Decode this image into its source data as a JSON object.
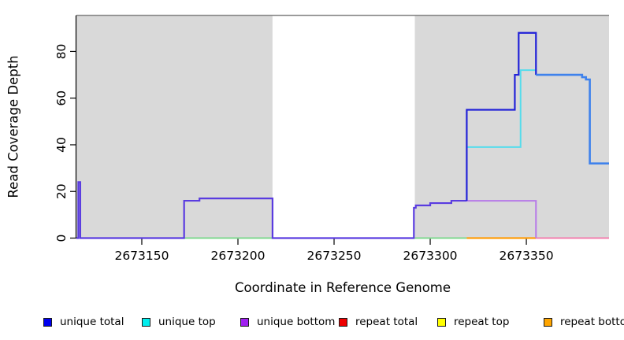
{
  "chart_data": {
    "type": "line",
    "subtype": "step-coverage",
    "title": "",
    "xlabel": "Coordinate in Reference Genome",
    "ylabel": "Read Coverage Depth",
    "xlim": [
      2673116,
      2673393
    ],
    "ylim": [
      0,
      95.5
    ],
    "x_ticks": [
      2673150,
      2673200,
      2673250,
      2673300,
      2673350
    ],
    "y_ticks": [
      0,
      20,
      40,
      60,
      80
    ],
    "grid": "off",
    "legend_position": "bottom",
    "shaded_regions": [
      {
        "name": "left-gray-region",
        "x0": 2673116,
        "x1": 2673218,
        "fill": "#d9d9d9"
      },
      {
        "name": "white-region",
        "x0": 2673218,
        "x1": 2673292,
        "fill": "#ffffff"
      },
      {
        "name": "right-gray-region",
        "x0": 2673292,
        "x1": 2673393,
        "fill": "#d9d9d9"
      }
    ],
    "series": [
      {
        "name": "unique total",
        "color": "#0000ee",
        "points": [
          [
            2673116,
            0
          ],
          [
            2673117,
            24
          ],
          [
            2673118,
            0
          ],
          [
            2673172,
            16
          ],
          [
            2673180,
            17
          ],
          [
            2673218,
            0
          ],
          [
            2673291.5,
            13
          ],
          [
            2673292.5,
            14
          ],
          [
            2673300,
            15
          ],
          [
            2673311,
            16
          ],
          [
            2673319,
            55
          ],
          [
            2673344,
            70
          ],
          [
            2673346,
            88
          ],
          [
            2673355,
            70
          ],
          [
            2673379,
            69
          ],
          [
            2673381,
            68
          ],
          [
            2673383,
            32
          ],
          [
            2673393,
            32
          ]
        ]
      },
      {
        "name": "unique top",
        "color": "#00eeee",
        "points": [
          [
            2673116,
            0
          ],
          [
            2673319,
            39
          ],
          [
            2673347,
            72
          ],
          [
            2673355,
            70
          ],
          [
            2673379,
            69
          ],
          [
            2673381,
            68
          ],
          [
            2673383,
            32
          ],
          [
            2673393,
            32
          ]
        ]
      },
      {
        "name": "unique bottom",
        "color": "#a020f0",
        "points": [
          [
            2673116,
            0
          ],
          [
            2673117,
            24
          ],
          [
            2673118,
            0
          ],
          [
            2673172,
            16
          ],
          [
            2673180,
            17
          ],
          [
            2673218,
            0
          ],
          [
            2673291.5,
            13
          ],
          [
            2673292.5,
            14
          ],
          [
            2673300,
            15
          ],
          [
            2673311,
            16
          ],
          [
            2673355,
            0
          ],
          [
            2673393,
            0
          ]
        ]
      },
      {
        "name": "repeat total",
        "color": "#ee0000",
        "points": [
          [
            2673116,
            0
          ],
          [
            2673393,
            0
          ]
        ]
      },
      {
        "name": "repeat top",
        "color": "#ffff00",
        "points": [
          [
            2673116,
            0
          ],
          [
            2673393,
            0
          ]
        ]
      },
      {
        "name": "repeat bottom",
        "color": "#ffa500",
        "points": [
          [
            2673116,
            0
          ],
          [
            2673393,
            0
          ]
        ]
      }
    ],
    "render_segments": [
      {
        "name": "zero-line-green-left",
        "color": "#7fd78f",
        "width": 2,
        "points": [
          [
            2673172,
            0
          ],
          [
            2673218,
            0
          ]
        ]
      },
      {
        "name": "zero-line-green-right",
        "color": "#7fd78f",
        "width": 2,
        "points": [
          [
            2673292,
            0
          ],
          [
            2673319,
            0
          ]
        ]
      },
      {
        "name": "zero-line-orange",
        "color": "#ff9d0a",
        "width": 2.2,
        "points": [
          [
            2673319,
            0
          ],
          [
            2673355,
            0
          ]
        ]
      },
      {
        "name": "zero-line-pink",
        "color": "#f27fae",
        "width": 2,
        "points": [
          [
            2673355,
            0
          ],
          [
            2673393,
            0
          ]
        ]
      },
      {
        "name": "unique-bottom-line",
        "color": "#b77ae8",
        "width": 2,
        "points": [
          [
            2673319,
            16
          ],
          [
            2673355,
            0
          ]
        ]
      },
      {
        "name": "unique-top-line",
        "color": "#55dcec",
        "width": 2,
        "points": [
          [
            2673319,
            39
          ],
          [
            2673347,
            72
          ],
          [
            2673355,
            70
          ]
        ]
      },
      {
        "name": "unique-total-violet",
        "color": "#5a3ce0",
        "width": 2.2,
        "points": [
          [
            2673116,
            0
          ],
          [
            2673117,
            24
          ],
          [
            2673118,
            0
          ],
          [
            2673172,
            16
          ],
          [
            2673180,
            17
          ],
          [
            2673218,
            0
          ],
          [
            2673291.5,
            13
          ],
          [
            2673292.5,
            14
          ],
          [
            2673300,
            15
          ],
          [
            2673311,
            16
          ],
          [
            2673319,
            16
          ]
        ]
      },
      {
        "name": "unique-total-blue",
        "color": "#2222d8",
        "width": 2.2,
        "points": [
          [
            2673319,
            16
          ],
          [
            2673319,
            55
          ],
          [
            2673344,
            70
          ],
          [
            2673346,
            88
          ],
          [
            2673355,
            70
          ]
        ]
      },
      {
        "name": "unique-total-skyblue",
        "color": "#3f82ec",
        "width": 2.6,
        "points": [
          [
            2673355,
            70
          ],
          [
            2673379,
            69
          ],
          [
            2673381,
            68
          ],
          [
            2673383,
            32
          ],
          [
            2673393,
            32
          ]
        ]
      }
    ],
    "frame": {
      "top_border_color": "#8a8a8a",
      "axis_color": "#000000"
    }
  },
  "legend": {
    "items": [
      {
        "label": "unique total",
        "color": "#0000ee"
      },
      {
        "label": "unique top",
        "color": "#00eeee"
      },
      {
        "label": "unique bottom",
        "color": "#a020f0"
      },
      {
        "label": "repeat total",
        "color": "#ee0000"
      },
      {
        "label": "repeat top",
        "color": "#ffff00"
      },
      {
        "label": "repeat bottom",
        "color": "#ffa500"
      }
    ]
  }
}
